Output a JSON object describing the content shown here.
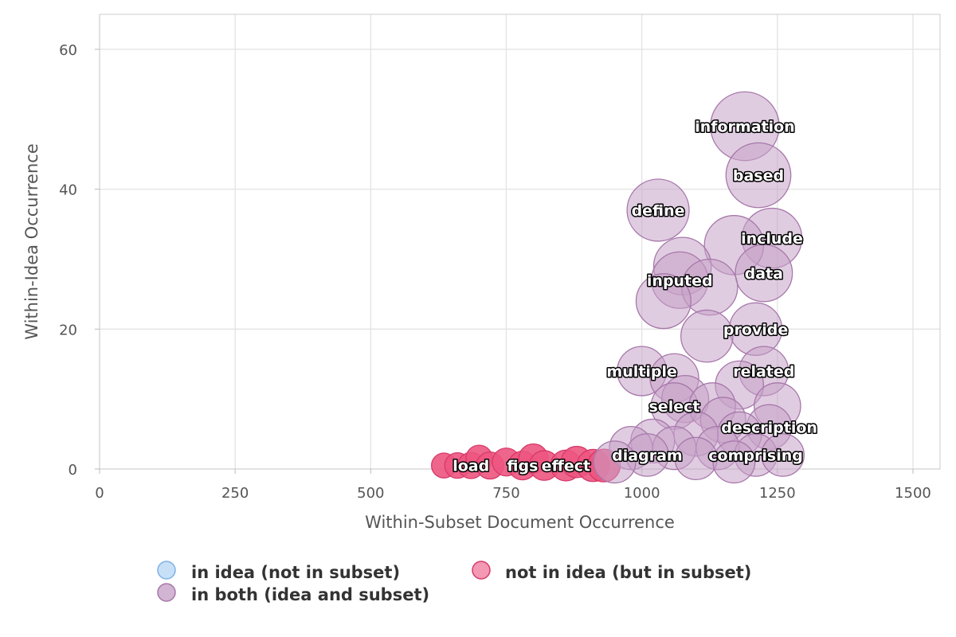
{
  "chart_data": {
    "type": "scatter",
    "xlabel": "Within-Subset Document Occurrence",
    "ylabel": "Within-Idea Occurrence",
    "xlim": [
      0,
      1550
    ],
    "ylim": [
      0,
      65
    ],
    "xticks": [
      "0",
      "250",
      "500",
      "750",
      "1000",
      "1250",
      "1500"
    ],
    "yticks": [
      "0",
      "20",
      "40",
      "60"
    ],
    "grid": true,
    "legend_position": "bottom",
    "colors": {
      "in_idea_fill": "#b9d8f5",
      "in_idea_stroke": "#7fb2e5",
      "not_in_idea_fill": "#ec5580",
      "not_in_idea_stroke": "#d8396a",
      "both_fill": "#c6a3c8",
      "both_stroke": "#a777aa"
    },
    "series": [
      {
        "name": "in idea (not in subset)",
        "key": "in_idea",
        "points": []
      },
      {
        "name": "not in idea (but in subset)",
        "key": "not_in_idea",
        "points": [
          {
            "x": 635,
            "y": 0.5
          },
          {
            "x": 660,
            "y": 0.5
          },
          {
            "x": 685,
            "y": 0.5,
            "label": "load"
          },
          {
            "x": 700,
            "y": 1.5
          },
          {
            "x": 720,
            "y": 0.5
          },
          {
            "x": 750,
            "y": 1
          },
          {
            "x": 780,
            "y": 0.5,
            "label": "figs"
          },
          {
            "x": 800,
            "y": 1.5
          },
          {
            "x": 820,
            "y": 0.5
          },
          {
            "x": 860,
            "y": 0.5,
            "label": "effect"
          },
          {
            "x": 880,
            "y": 1
          },
          {
            "x": 910,
            "y": 0.5
          },
          {
            "x": 930,
            "y": 0.5
          }
        ]
      },
      {
        "name": "in both (idea and subset)",
        "key": "both",
        "points": [
          {
            "x": 1190,
            "y": 49,
            "label": "information"
          },
          {
            "x": 1215,
            "y": 42,
            "label": "based"
          },
          {
            "x": 1030,
            "y": 37,
            "label": "define"
          },
          {
            "x": 1240,
            "y": 33,
            "label": "include"
          },
          {
            "x": 1170,
            "y": 32
          },
          {
            "x": 1225,
            "y": 28,
            "label": "data"
          },
          {
            "x": 1075,
            "y": 29
          },
          {
            "x": 1070,
            "y": 27,
            "label": "inputed"
          },
          {
            "x": 1125,
            "y": 26
          },
          {
            "x": 1040,
            "y": 24
          },
          {
            "x": 1210,
            "y": 20,
            "label": "provide"
          },
          {
            "x": 1120,
            "y": 19
          },
          {
            "x": 1000,
            "y": 14,
            "label": "multiple"
          },
          {
            "x": 1060,
            "y": 13
          },
          {
            "x": 1225,
            "y": 14,
            "label": "related"
          },
          {
            "x": 1180,
            "y": 12
          },
          {
            "x": 1080,
            "y": 10
          },
          {
            "x": 1060,
            "y": 9,
            "label": "select"
          },
          {
            "x": 1130,
            "y": 9
          },
          {
            "x": 1250,
            "y": 9
          },
          {
            "x": 1150,
            "y": 7
          },
          {
            "x": 1235,
            "y": 6,
            "label": "description"
          },
          {
            "x": 1180,
            "y": 5
          },
          {
            "x": 1100,
            "y": 5
          },
          {
            "x": 1020,
            "y": 4
          },
          {
            "x": 980,
            "y": 3
          },
          {
            "x": 1060,
            "y": 3
          },
          {
            "x": 1010,
            "y": 2,
            "label": "diagram"
          },
          {
            "x": 1140,
            "y": 3
          },
          {
            "x": 1210,
            "y": 2,
            "label": "comprising"
          },
          {
            "x": 1260,
            "y": 2
          },
          {
            "x": 950,
            "y": 1
          },
          {
            "x": 1100,
            "y": 1.5
          },
          {
            "x": 1170,
            "y": 1
          }
        ]
      }
    ]
  }
}
